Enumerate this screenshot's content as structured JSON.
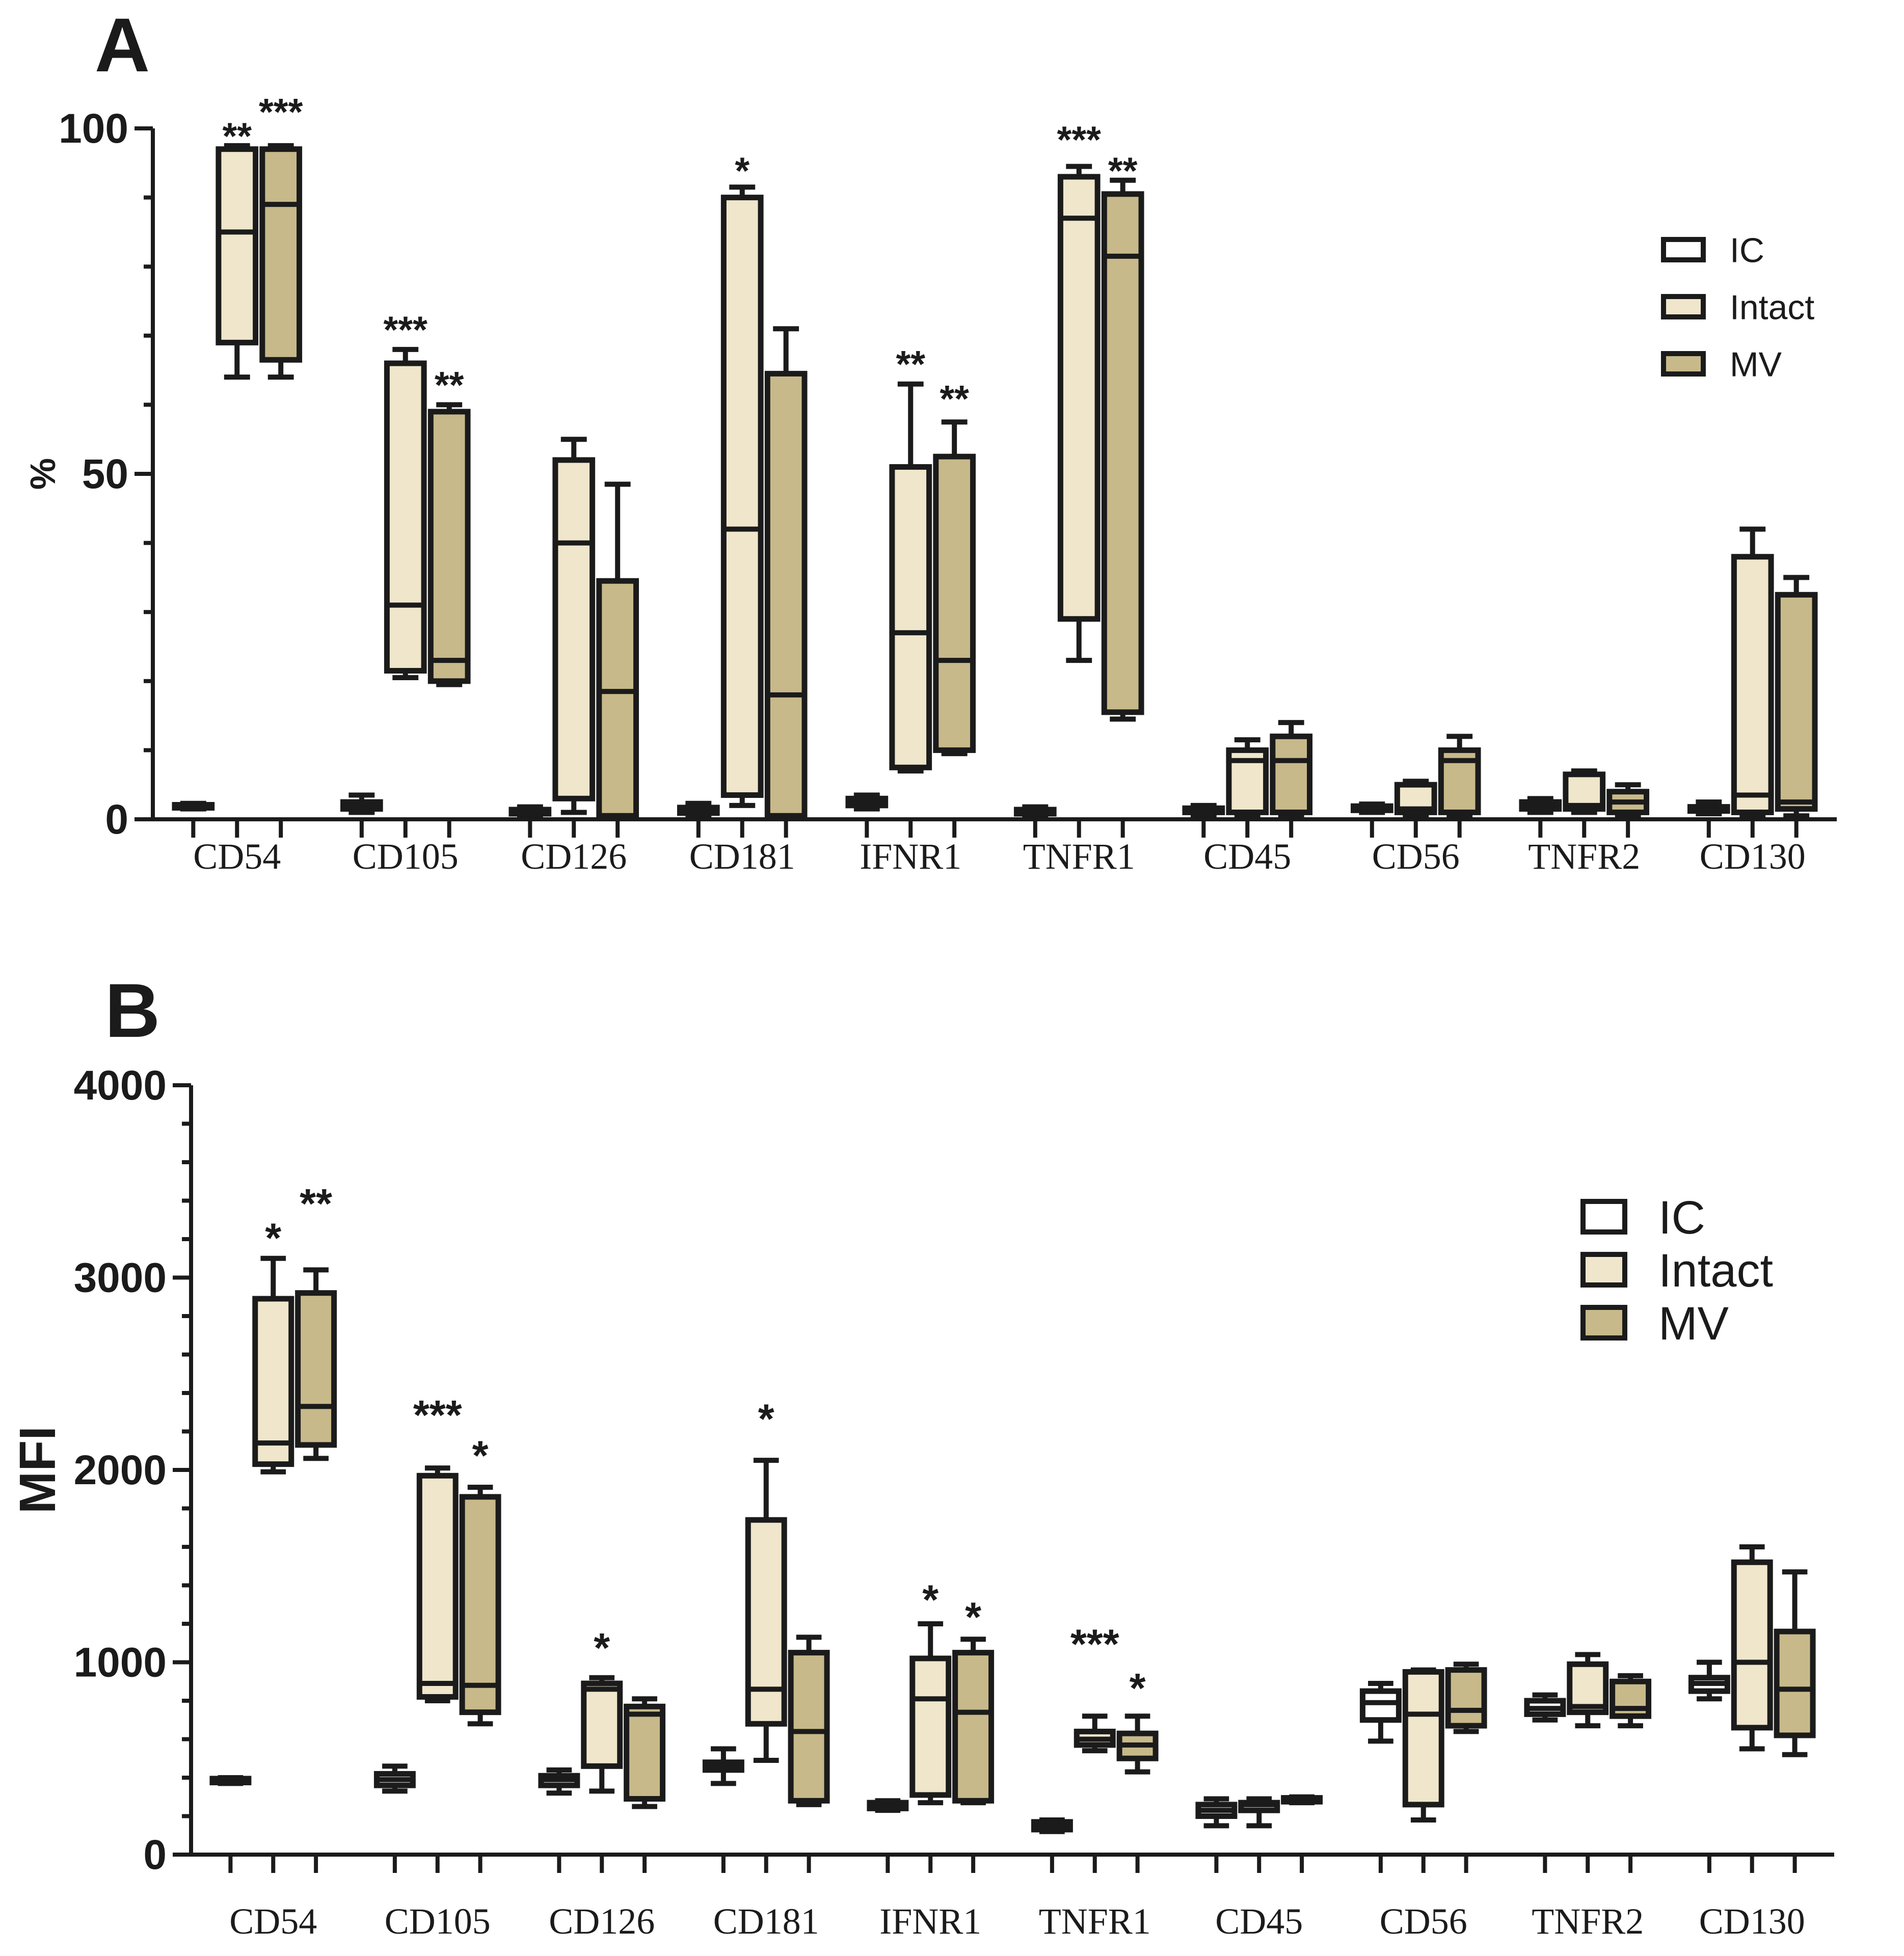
{
  "chart_data": [
    {
      "type": "box",
      "panel_label": "A",
      "ylabel": "%",
      "ylim": [
        0,
        100
      ],
      "yticks": [
        0,
        50,
        100
      ],
      "categories": [
        "CD54",
        "CD105",
        "CD126",
        "CD181",
        "IFNR1",
        "TNFR1",
        "CD45",
        "CD56",
        "TNFR2",
        "CD130"
      ],
      "legend": {
        "position": "top-right",
        "entries": [
          {
            "name": "IC",
            "color": "#ffffff"
          },
          {
            "name": "Intact",
            "color": "#efe6cb"
          },
          {
            "name": "MV",
            "color": "#c7b98a"
          }
        ]
      },
      "series": [
        {
          "name": "IC",
          "boxes": [
            {
              "min": 1.5,
              "q1": 1.7,
              "median": 1.9,
              "q3": 2.1,
              "max": 2.3
            },
            {
              "min": 1.0,
              "q1": 1.5,
              "median": 2.0,
              "q3": 2.5,
              "max": 3.5
            },
            {
              "min": 0.5,
              "q1": 0.8,
              "median": 1.1,
              "q3": 1.4,
              "max": 1.8
            },
            {
              "min": 0.5,
              "q1": 0.9,
              "median": 1.3,
              "q3": 1.7,
              "max": 2.3
            },
            {
              "min": 1.5,
              "q1": 2.0,
              "median": 2.5,
              "q3": 3.0,
              "max": 3.5
            },
            {
              "min": 0.4,
              "q1": 0.8,
              "median": 1.1,
              "q3": 1.4,
              "max": 1.8
            },
            {
              "min": 0.6,
              "q1": 1.0,
              "median": 1.3,
              "q3": 1.6,
              "max": 2.0
            },
            {
              "min": 1.0,
              "q1": 1.3,
              "median": 1.6,
              "q3": 1.9,
              "max": 2.2
            },
            {
              "min": 1.0,
              "q1": 1.5,
              "median": 2.0,
              "q3": 2.5,
              "max": 3.0
            },
            {
              "min": 0.8,
              "q1": 1.2,
              "median": 1.5,
              "q3": 1.8,
              "max": 2.5
            }
          ]
        },
        {
          "name": "Intact",
          "boxes": [
            {
              "min": 64,
              "q1": 69,
              "median": 85,
              "q3": 97,
              "max": 97.5
            },
            {
              "min": 20.5,
              "q1": 21.5,
              "median": 31,
              "q3": 66,
              "max": 68
            },
            {
              "min": 1,
              "q1": 3,
              "median": 40,
              "q3": 52,
              "max": 55
            },
            {
              "min": 2,
              "q1": 3.5,
              "median": 42,
              "q3": 90,
              "max": 91.5
            },
            {
              "min": 7,
              "q1": 7.5,
              "median": 27,
              "q3": 51,
              "max": 63
            },
            {
              "min": 23,
              "q1": 29,
              "median": 87,
              "q3": 93,
              "max": 94.5
            },
            {
              "min": 0.5,
              "q1": 1,
              "median": 8.5,
              "q3": 10,
              "max": 11.5
            },
            {
              "min": 0.5,
              "q1": 1,
              "median": 1.5,
              "q3": 5,
              "max": 5.5
            },
            {
              "min": 1,
              "q1": 1.5,
              "median": 2,
              "q3": 6.5,
              "max": 7
            },
            {
              "min": 0.5,
              "q1": 1,
              "median": 3.5,
              "q3": 38,
              "max": 42
            }
          ]
        },
        {
          "name": "MV",
          "boxes": [
            {
              "min": 64,
              "q1": 66.5,
              "median": 89,
              "q3": 97,
              "max": 97.5
            },
            {
              "min": 19.5,
              "q1": 20,
              "median": 23,
              "q3": 59,
              "max": 60
            },
            {
              "min": 0.5,
              "q1": 0.5,
              "median": 18.5,
              "q3": 34.5,
              "max": 48.5
            },
            {
              "min": 0.5,
              "q1": 0.5,
              "median": 18,
              "q3": 64.5,
              "max": 71
            },
            {
              "min": 9.5,
              "q1": 10,
              "median": 23,
              "q3": 52.5,
              "max": 57.5
            },
            {
              "min": 14.5,
              "q1": 15.5,
              "median": 81.5,
              "q3": 90.5,
              "max": 92.5
            },
            {
              "min": 0.5,
              "q1": 1,
              "median": 8.5,
              "q3": 12,
              "max": 14
            },
            {
              "min": 0.5,
              "q1": 1,
              "median": 8.5,
              "q3": 10,
              "max": 12
            },
            {
              "min": 0.5,
              "q1": 1,
              "median": 2.5,
              "q3": 4,
              "max": 5
            },
            {
              "min": 0.5,
              "q1": 1.5,
              "median": 2.5,
              "q3": 32.5,
              "max": 35
            }
          ]
        }
      ],
      "significance": [
        {
          "category": "CD54",
          "series": "Intact",
          "label": "**",
          "y": 100
        },
        {
          "category": "CD54",
          "series": "MV",
          "label": "***",
          "y": 103.5
        },
        {
          "category": "CD105",
          "series": "Intact",
          "label": "***",
          "y": 72
        },
        {
          "category": "CD105",
          "series": "MV",
          "label": "**",
          "y": 64
        },
        {
          "category": "CD181",
          "series": "Intact",
          "label": "*",
          "y": 95
        },
        {
          "category": "IFNR1",
          "series": "Intact",
          "label": "**",
          "y": 67
        },
        {
          "category": "IFNR1",
          "series": "MV",
          "label": "**",
          "y": 62
        },
        {
          "category": "TNFR1",
          "series": "Intact",
          "label": "***",
          "y": 99.5
        },
        {
          "category": "TNFR1",
          "series": "MV",
          "label": "**",
          "y": 95
        }
      ]
    },
    {
      "type": "box",
      "panel_label": "B",
      "ylabel": "MFI",
      "ylim": [
        0,
        4000
      ],
      "yticks": [
        0,
        1000,
        2000,
        3000,
        4000
      ],
      "categories": [
        "CD54",
        "CD105",
        "CD126",
        "CD181",
        "IFNR1",
        "TNFR1",
        "CD45",
        "CD56",
        "TNFR2",
        "CD130"
      ],
      "legend": {
        "position": "top-right",
        "entries": [
          {
            "name": "IC",
            "color": "#ffffff"
          },
          {
            "name": "Intact",
            "color": "#efe6cb"
          },
          {
            "name": "MV",
            "color": "#c7b98a"
          }
        ]
      },
      "series": [
        {
          "name": "IC",
          "boxes": [
            {
              "min": 370,
              "q1": 375,
              "median": 385,
              "q3": 395,
              "max": 400
            },
            {
              "min": 330,
              "q1": 360,
              "median": 390,
              "q3": 420,
              "max": 460
            },
            {
              "min": 320,
              "q1": 360,
              "median": 390,
              "q3": 410,
              "max": 440
            },
            {
              "min": 370,
              "q1": 440,
              "median": 460,
              "q3": 480,
              "max": 550
            },
            {
              "min": 230,
              "q1": 240,
              "median": 255,
              "q3": 270,
              "max": 280
            },
            {
              "min": 120,
              "q1": 130,
              "median": 150,
              "q3": 170,
              "max": 180
            },
            {
              "min": 150,
              "q1": 200,
              "median": 230,
              "q3": 260,
              "max": 290
            },
            {
              "min": 590,
              "q1": 700,
              "median": 790,
              "q3": 850,
              "max": 890
            },
            {
              "min": 700,
              "q1": 730,
              "median": 760,
              "q3": 800,
              "max": 830
            },
            {
              "min": 810,
              "q1": 850,
              "median": 890,
              "q3": 920,
              "max": 1000
            }
          ]
        },
        {
          "name": "Intact",
          "boxes": [
            {
              "min": 1990,
              "q1": 2030,
              "median": 2140,
              "q3": 2890,
              "max": 3100
            },
            {
              "min": 800,
              "q1": 820,
              "median": 890,
              "q3": 1970,
              "max": 2010
            },
            {
              "min": 330,
              "q1": 460,
              "median": 860,
              "q3": 890,
              "max": 920
            },
            {
              "min": 490,
              "q1": 680,
              "median": 860,
              "q3": 1740,
              "max": 2050
            },
            {
              "min": 270,
              "q1": 310,
              "median": 810,
              "q3": 1020,
              "max": 1200
            },
            {
              "min": 540,
              "q1": 570,
              "median": 600,
              "q3": 640,
              "max": 720
            },
            {
              "min": 150,
              "q1": 230,
              "median": 260,
              "q3": 270,
              "max": 290
            },
            {
              "min": 180,
              "q1": 260,
              "median": 730,
              "q3": 950,
              "max": 960
            },
            {
              "min": 670,
              "q1": 740,
              "median": 770,
              "q3": 990,
              "max": 1040
            },
            {
              "min": 550,
              "q1": 660,
              "median": 1000,
              "q3": 1520,
              "max": 1600
            }
          ]
        },
        {
          "name": "MV",
          "boxes": [
            {
              "min": 2060,
              "q1": 2130,
              "median": 2330,
              "q3": 2920,
              "max": 3040
            },
            {
              "min": 680,
              "q1": 740,
              "median": 880,
              "q3": 1860,
              "max": 1910
            },
            {
              "min": 250,
              "q1": 290,
              "median": 730,
              "q3": 770,
              "max": 810
            },
            {
              "min": 260,
              "q1": 280,
              "median": 640,
              "q3": 1050,
              "max": 1130
            },
            {
              "min": 270,
              "q1": 280,
              "median": 740,
              "q3": 1050,
              "max": 1120
            },
            {
              "min": 430,
              "q1": 500,
              "median": 570,
              "q3": 630,
              "max": 720
            },
            {
              "min": 270,
              "q1": 275,
              "median": 285,
              "q3": 295,
              "max": 300
            },
            {
              "min": 640,
              "q1": 670,
              "median": 750,
              "q3": 960,
              "max": 990
            },
            {
              "min": 670,
              "q1": 720,
              "median": 760,
              "q3": 900,
              "max": 930
            },
            {
              "min": 520,
              "q1": 620,
              "median": 860,
              "q3": 1160,
              "max": 1470
            }
          ]
        }
      ],
      "significance": [
        {
          "category": "CD54",
          "series": "Intact",
          "label": "*",
          "y": 3250
        },
        {
          "category": "CD54",
          "series": "MV",
          "label": "**",
          "y": 3430
        },
        {
          "category": "CD105",
          "series": "Intact",
          "label": "***",
          "y": 2330
        },
        {
          "category": "CD105",
          "series": "MV",
          "label": "*",
          "y": 2120
        },
        {
          "category": "CD126",
          "series": "Intact",
          "label": "*",
          "y": 1120
        },
        {
          "category": "CD181",
          "series": "Intact",
          "label": "*",
          "y": 2310
        },
        {
          "category": "IFNR1",
          "series": "Intact",
          "label": "*",
          "y": 1370
        },
        {
          "category": "IFNR1",
          "series": "MV",
          "label": "*",
          "y": 1280
        },
        {
          "category": "TNFR1",
          "series": "Intact",
          "label": "***",
          "y": 1140
        },
        {
          "category": "TNFR1",
          "series": "MV",
          "label": "*",
          "y": 910
        }
      ]
    }
  ]
}
